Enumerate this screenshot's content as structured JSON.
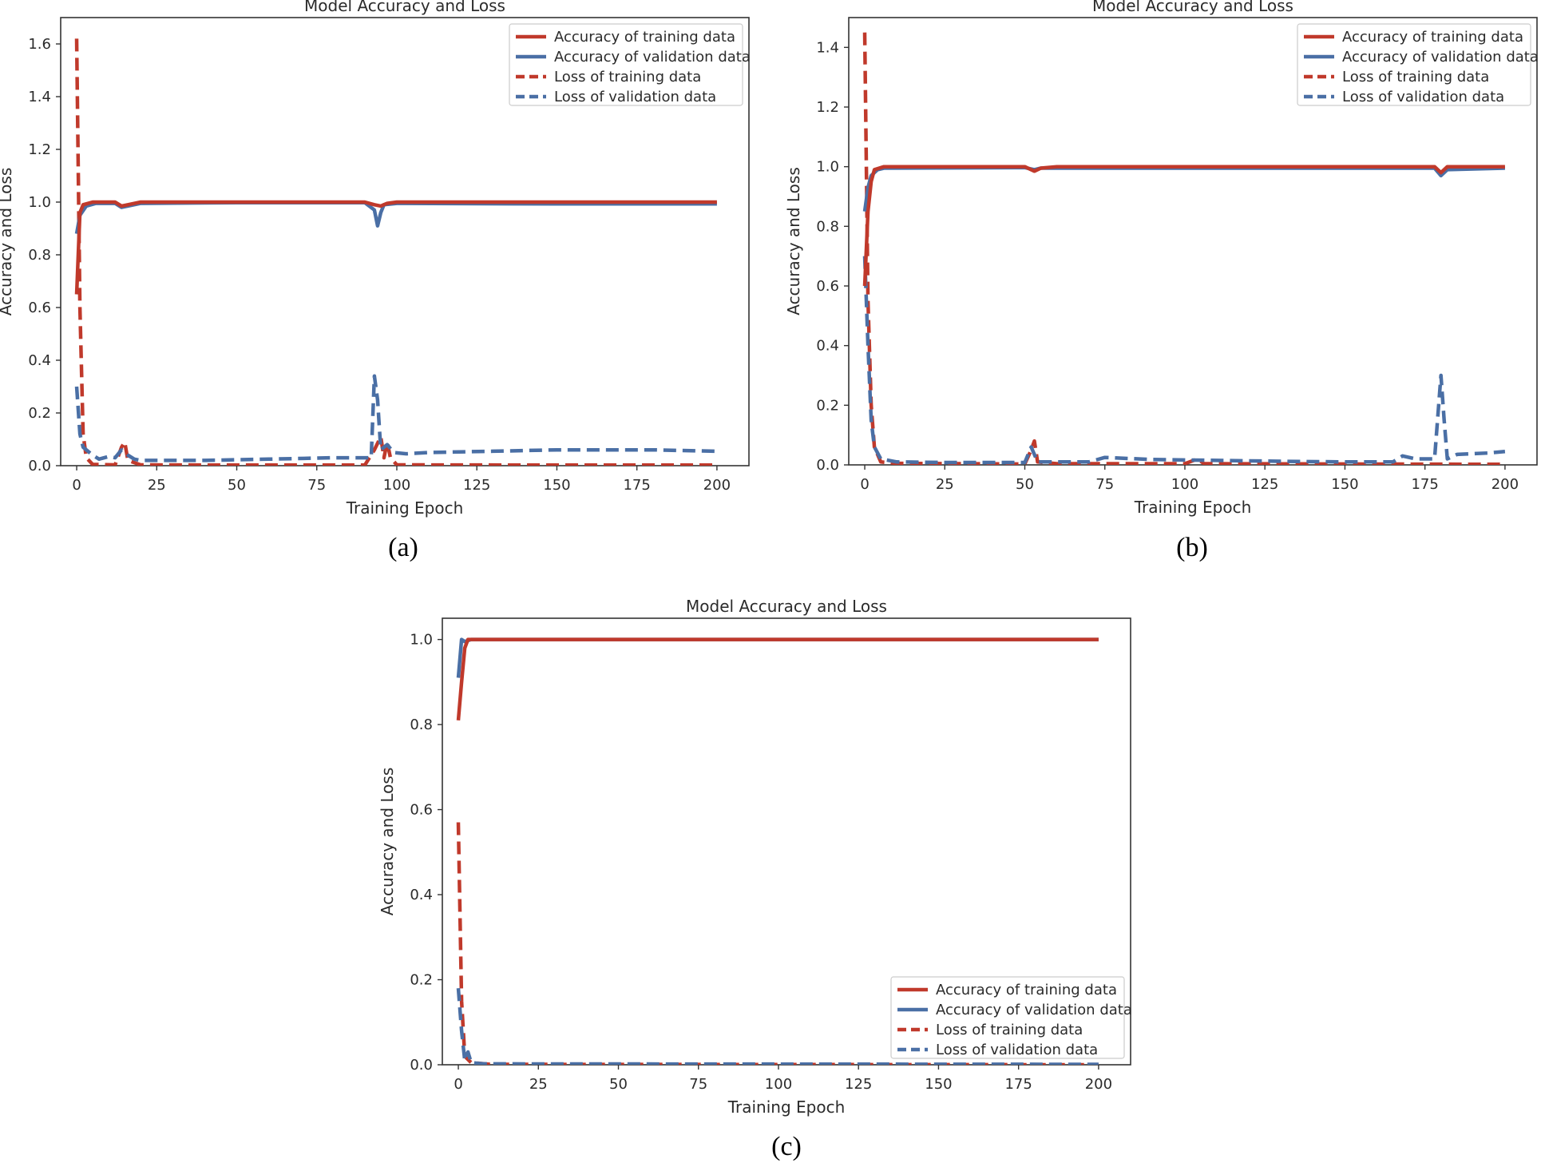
{
  "colors": {
    "train": "#c0392b",
    "val": "#4a6fa5"
  },
  "legend_labels": [
    "Accuracy of training data",
    "Accuracy of validation data",
    "Loss of training data",
    "Loss of validation data"
  ],
  "chart_data": [
    {
      "type": "line",
      "panel_label": "(a)",
      "title": "Model Accuracy and Loss",
      "xlabel": "Training Epoch",
      "ylabel": "Accuracy and Loss",
      "xlim": [
        -5,
        210
      ],
      "ylim": [
        0,
        1.7
      ],
      "xticks": [
        0,
        25,
        50,
        75,
        100,
        125,
        150,
        175,
        200
      ],
      "yticks": [
        0.0,
        0.2,
        0.4,
        0.6,
        0.8,
        1.0,
        1.2,
        1.4,
        1.6
      ],
      "grid": false,
      "legend_position": "top-right",
      "series": [
        {
          "name": "Accuracy of training data",
          "style": "solid",
          "color": "train",
          "points": [
            [
              0,
              0.65
            ],
            [
              1,
              0.96
            ],
            [
              2,
              0.99
            ],
            [
              5,
              1.0
            ],
            [
              12,
              1.0
            ],
            [
              14,
              0.985
            ],
            [
              16,
              0.99
            ],
            [
              20,
              1.0
            ],
            [
              50,
              1.0
            ],
            [
              90,
              1.0
            ],
            [
              93,
              0.99
            ],
            [
              95,
              0.985
            ],
            [
              97,
              0.995
            ],
            [
              100,
              1.0
            ],
            [
              150,
              1.0
            ],
            [
              200,
              1.0
            ]
          ]
        },
        {
          "name": "Accuracy of validation data",
          "style": "solid",
          "color": "val",
          "points": [
            [
              0,
              0.88
            ],
            [
              1,
              0.95
            ],
            [
              3,
              0.985
            ],
            [
              6,
              0.995
            ],
            [
              12,
              0.995
            ],
            [
              14,
              0.98
            ],
            [
              16,
              0.985
            ],
            [
              20,
              0.995
            ],
            [
              50,
              0.998
            ],
            [
              90,
              0.998
            ],
            [
              93,
              0.97
            ],
            [
              94,
              0.91
            ],
            [
              95,
              0.96
            ],
            [
              96,
              0.99
            ],
            [
              100,
              0.995
            ],
            [
              150,
              0.993
            ],
            [
              200,
              0.993
            ]
          ]
        },
        {
          "name": "Loss of training data",
          "style": "dashed",
          "color": "train",
          "points": [
            [
              0,
              1.62
            ],
            [
              1,
              0.6
            ],
            [
              2,
              0.12
            ],
            [
              3,
              0.03
            ],
            [
              5,
              0.005
            ],
            [
              12,
              0.003
            ],
            [
              14,
              0.07
            ],
            [
              15,
              0.09
            ],
            [
              16,
              0.02
            ],
            [
              20,
              0.003
            ],
            [
              50,
              0.002
            ],
            [
              90,
              0.002
            ],
            [
              93,
              0.06
            ],
            [
              95,
              0.11
            ],
            [
              96,
              0.03
            ],
            [
              97,
              0.09
            ],
            [
              98,
              0.03
            ],
            [
              100,
              0.003
            ],
            [
              150,
              0.002
            ],
            [
              200,
              0.002
            ]
          ]
        },
        {
          "name": "Loss of validation data",
          "style": "dashed",
          "color": "val",
          "points": [
            [
              0,
              0.3
            ],
            [
              1,
              0.12
            ],
            [
              2,
              0.07
            ],
            [
              5,
              0.04
            ],
            [
              7,
              0.025
            ],
            [
              10,
              0.035
            ],
            [
              12,
              0.03
            ],
            [
              14,
              0.06
            ],
            [
              16,
              0.04
            ],
            [
              18,
              0.025
            ],
            [
              20,
              0.02
            ],
            [
              40,
              0.02
            ],
            [
              60,
              0.025
            ],
            [
              80,
              0.03
            ],
            [
              92,
              0.03
            ],
            [
              93,
              0.34
            ],
            [
              94,
              0.25
            ],
            [
              95,
              0.06
            ],
            [
              97,
              0.08
            ],
            [
              99,
              0.05
            ],
            [
              103,
              0.045
            ],
            [
              110,
              0.05
            ],
            [
              130,
              0.055
            ],
            [
              150,
              0.06
            ],
            [
              180,
              0.06
            ],
            [
              200,
              0.055
            ]
          ]
        }
      ]
    },
    {
      "type": "line",
      "panel_label": "(b)",
      "title": "Model Accuracy and Loss",
      "xlabel": "Training Epoch",
      "ylabel": "Accuracy and Loss",
      "xlim": [
        -5,
        210
      ],
      "ylim": [
        0,
        1.5
      ],
      "xticks": [
        0,
        25,
        50,
        75,
        100,
        125,
        150,
        175,
        200
      ],
      "yticks": [
        0.0,
        0.2,
        0.4,
        0.6,
        0.8,
        1.0,
        1.2,
        1.4
      ],
      "grid": false,
      "legend_position": "top-right",
      "series": [
        {
          "name": "Accuracy of training data",
          "style": "solid",
          "color": "train",
          "points": [
            [
              0,
              0.6
            ],
            [
              1,
              0.85
            ],
            [
              2,
              0.95
            ],
            [
              3,
              0.99
            ],
            [
              6,
              1.0
            ],
            [
              50,
              1.0
            ],
            [
              53,
              0.985
            ],
            [
              55,
              0.995
            ],
            [
              60,
              1.0
            ],
            [
              150,
              1.0
            ],
            [
              178,
              1.0
            ],
            [
              180,
              0.98
            ],
            [
              182,
              1.0
            ],
            [
              200,
              1.0
            ]
          ]
        },
        {
          "name": "Accuracy of validation data",
          "style": "solid",
          "color": "val",
          "points": [
            [
              0,
              0.85
            ],
            [
              1,
              0.93
            ],
            [
              2,
              0.97
            ],
            [
              4,
              0.99
            ],
            [
              6,
              0.995
            ],
            [
              50,
              0.997
            ],
            [
              53,
              0.99
            ],
            [
              55,
              0.995
            ],
            [
              100,
              0.995
            ],
            [
              178,
              0.995
            ],
            [
              180,
              0.97
            ],
            [
              182,
              0.99
            ],
            [
              200,
              0.995
            ]
          ]
        },
        {
          "name": "Loss of training data",
          "style": "dashed",
          "color": "train",
          "points": [
            [
              0,
              1.45
            ],
            [
              1,
              0.55
            ],
            [
              2,
              0.2
            ],
            [
              3,
              0.06
            ],
            [
              5,
              0.01
            ],
            [
              10,
              0.005
            ],
            [
              50,
              0.003
            ],
            [
              52,
              0.05
            ],
            [
              53,
              0.08
            ],
            [
              54,
              0.01
            ],
            [
              60,
              0.004
            ],
            [
              100,
              0.004
            ],
            [
              104,
              0.02
            ],
            [
              106,
              0.004
            ],
            [
              150,
              0.003
            ],
            [
              200,
              0.002
            ]
          ]
        },
        {
          "name": "Loss of validation data",
          "style": "dashed",
          "color": "val",
          "points": [
            [
              0,
              0.7
            ],
            [
              1,
              0.4
            ],
            [
              2,
              0.15
            ],
            [
              3,
              0.06
            ],
            [
              5,
              0.02
            ],
            [
              10,
              0.01
            ],
            [
              25,
              0.008
            ],
            [
              50,
              0.008
            ],
            [
              52,
              0.06
            ],
            [
              54,
              0.01
            ],
            [
              70,
              0.01
            ],
            [
              75,
              0.025
            ],
            [
              90,
              0.018
            ],
            [
              110,
              0.015
            ],
            [
              130,
              0.012
            ],
            [
              150,
              0.01
            ],
            [
              165,
              0.01
            ],
            [
              168,
              0.03
            ],
            [
              172,
              0.02
            ],
            [
              178,
              0.02
            ],
            [
              180,
              0.3
            ],
            [
              181,
              0.15
            ],
            [
              182,
              0.02
            ],
            [
              185,
              0.035
            ],
            [
              195,
              0.04
            ],
            [
              200,
              0.045
            ]
          ]
        }
      ]
    },
    {
      "type": "line",
      "panel_label": "(c)",
      "title": "Model Accuracy and Loss",
      "xlabel": "Training Epoch",
      "ylabel": "Accuracy and Loss",
      "xlim": [
        -5,
        210
      ],
      "ylim": [
        0,
        1.05
      ],
      "xticks": [
        0,
        25,
        50,
        75,
        100,
        125,
        150,
        175,
        200
      ],
      "yticks": [
        0.0,
        0.2,
        0.4,
        0.6,
        0.8,
        1.0
      ],
      "grid": false,
      "legend_position": "bottom-right",
      "series": [
        {
          "name": "Accuracy of training data",
          "style": "solid",
          "color": "train",
          "points": [
            [
              0,
              0.81
            ],
            [
              1,
              0.9
            ],
            [
              2,
              0.98
            ],
            [
              3,
              1.0
            ],
            [
              200,
              1.0
            ]
          ]
        },
        {
          "name": "Accuracy of validation data",
          "style": "solid",
          "color": "val",
          "points": [
            [
              0,
              0.91
            ],
            [
              1,
              1.0
            ],
            [
              2,
              0.995
            ],
            [
              4,
              1.0
            ],
            [
              200,
              1.0
            ]
          ]
        },
        {
          "name": "Loss of training data",
          "style": "dashed",
          "color": "train",
          "points": [
            [
              0,
              0.57
            ],
            [
              1,
              0.15
            ],
            [
              2,
              0.02
            ],
            [
              4,
              0.005
            ],
            [
              10,
              0.001
            ],
            [
              200,
              0.0
            ]
          ]
        },
        {
          "name": "Loss of validation data",
          "style": "dashed",
          "color": "val",
          "points": [
            [
              0,
              0.18
            ],
            [
              1,
              0.08
            ],
            [
              2,
              0.01
            ],
            [
              3,
              0.03
            ],
            [
              4,
              0.005
            ],
            [
              8,
              0.002
            ],
            [
              200,
              0.001
            ]
          ]
        }
      ]
    }
  ]
}
